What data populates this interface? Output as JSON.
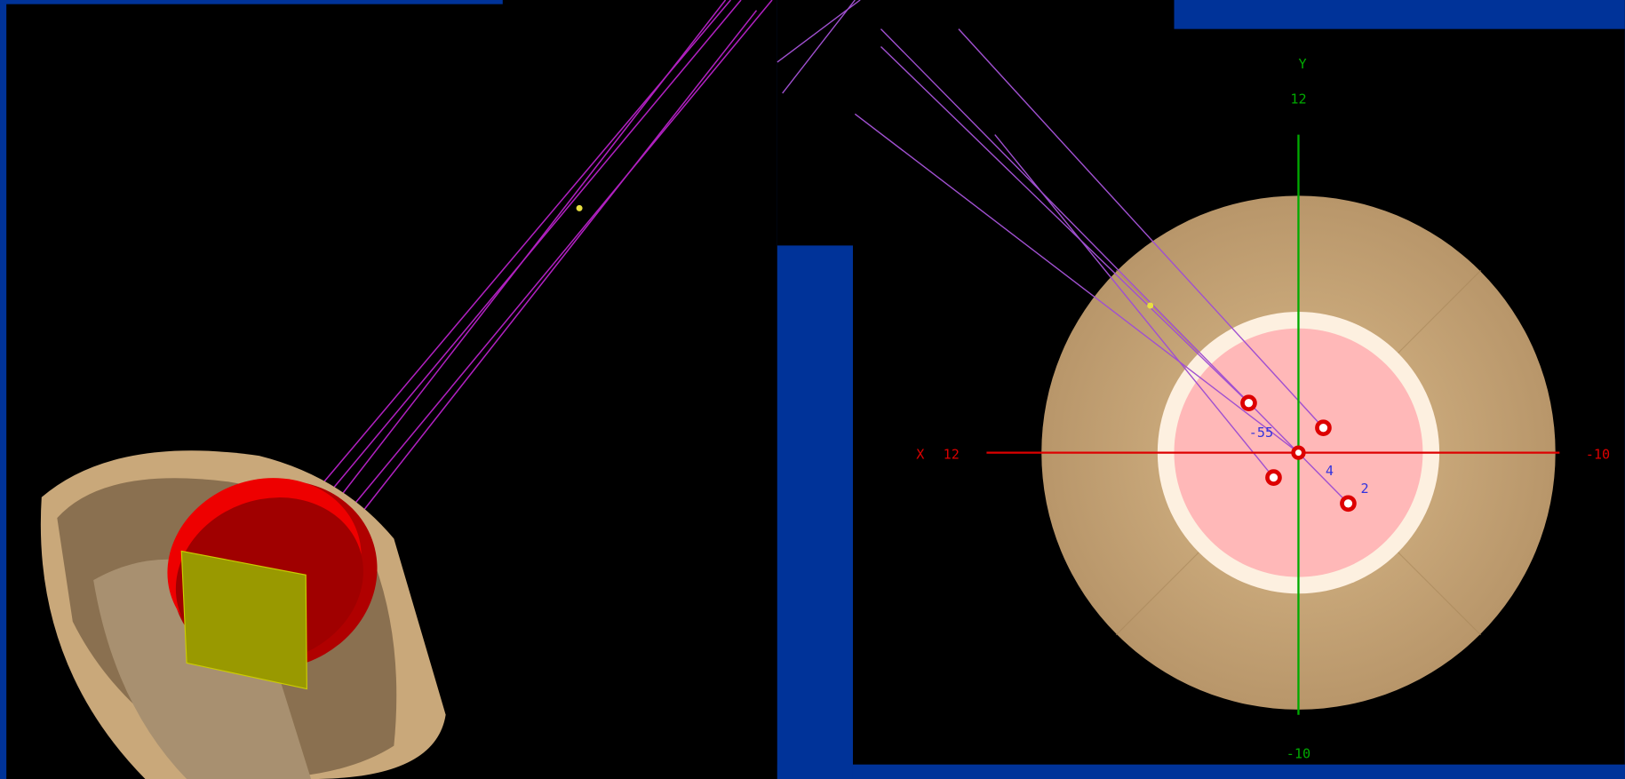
{
  "labels": {
    "y_axis": "Y",
    "y_top": "12",
    "x_axis": "X",
    "x_left": "12",
    "x_right": "-10",
    "y_bottom": "-10",
    "track_a": "-55",
    "track_b": "4",
    "track_c": "2"
  }
}
